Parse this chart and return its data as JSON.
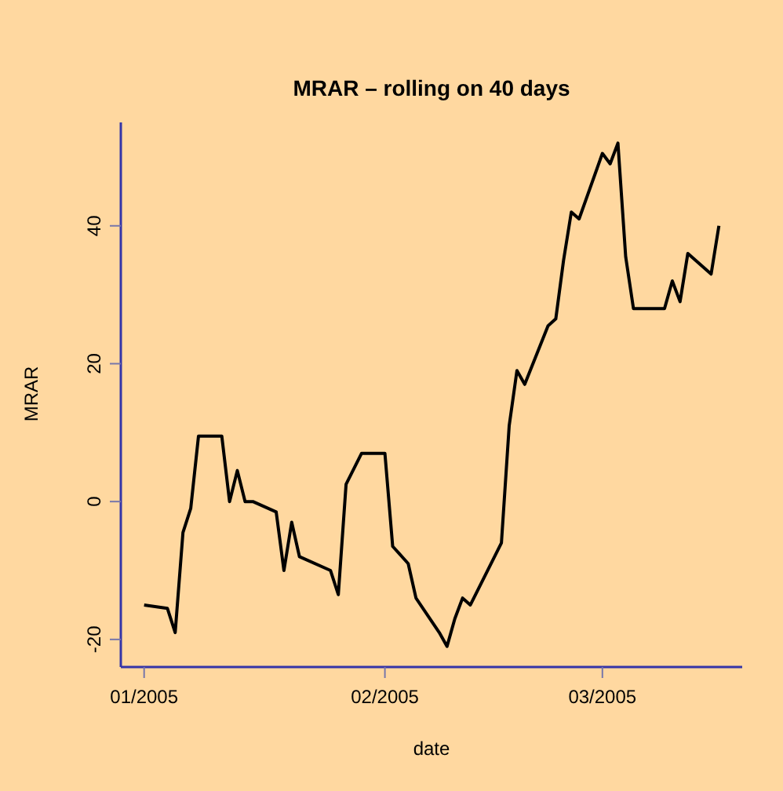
{
  "chart_data": {
    "type": "line",
    "title": "MRAR – rolling on 40 days",
    "xlabel": "date",
    "ylabel": "MRAR",
    "color": "#000000",
    "x": [
      "2005-01-01",
      "2005-01-04",
      "2005-01-05",
      "2005-01-06",
      "2005-01-07",
      "2005-01-08",
      "2005-01-11",
      "2005-01-12",
      "2005-01-13",
      "2005-01-14",
      "2005-01-15",
      "2005-01-18",
      "2005-01-19",
      "2005-01-20",
      "2005-01-21",
      "2005-01-25",
      "2005-01-26",
      "2005-01-27",
      "2005-01-29",
      "2005-02-01",
      "2005-02-02",
      "2005-02-04",
      "2005-02-05",
      "2005-02-08",
      "2005-02-09",
      "2005-02-10",
      "2005-02-11",
      "2005-02-12",
      "2005-02-16",
      "2005-02-17",
      "2005-02-18",
      "2005-02-19",
      "2005-02-22",
      "2005-02-23",
      "2005-02-24",
      "2005-02-25",
      "2005-02-26",
      "2005-03-01",
      "2005-03-02",
      "2005-03-03",
      "2005-03-04",
      "2005-03-05",
      "2005-03-09",
      "2005-03-10",
      "2005-03-11",
      "2005-03-12",
      "2005-03-15",
      "2005-03-16"
    ],
    "values": [
      -15,
      -15.5,
      -19,
      -4.5,
      -1,
      9.5,
      9.5,
      0,
      4.5,
      0,
      0,
      -1.5,
      -10,
      -3,
      -8,
      -10,
      -13.5,
      2.5,
      7,
      7,
      -6.5,
      -9,
      -14,
      -19,
      -21,
      -17,
      -14,
      -15,
      -6,
      11,
      19,
      17,
      25.5,
      26.5,
      35,
      42,
      41,
      50.5,
      49,
      52,
      35.5,
      28,
      28,
      32,
      29,
      36,
      33,
      40
    ],
    "xlim": [
      "2004-12-29",
      "2005-03-19"
    ],
    "ylim": [
      -24,
      55
    ],
    "xticks": [
      {
        "value": "2005-01-01",
        "label": "01/2005"
      },
      {
        "value": "2005-02-01",
        "label": "02/2005"
      },
      {
        "value": "2005-03-01",
        "label": "03/2005"
      }
    ],
    "yticks": [
      -20,
      0,
      20,
      40
    ]
  }
}
